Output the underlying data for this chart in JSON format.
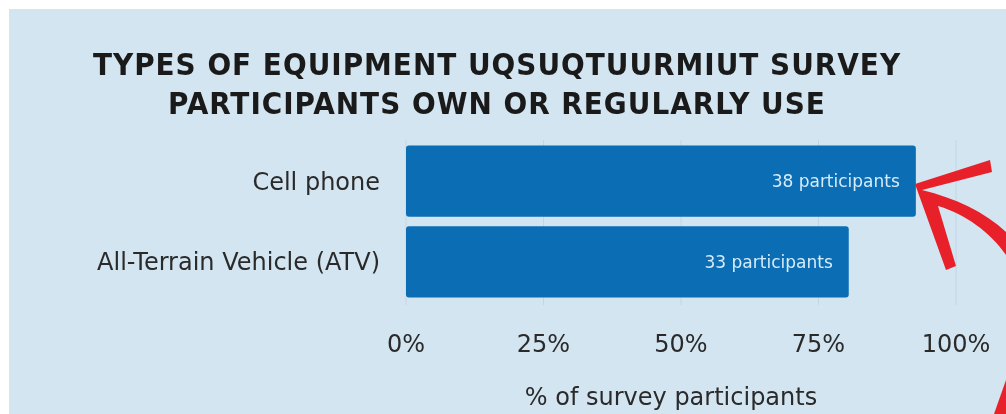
{
  "chart_data": {
    "type": "bar",
    "orientation": "horizontal",
    "title": "TYPES OF EQUIPMENT UQSUQTUURMIUT SURVEY PARTICIPANTS OWN OR REGULARLY USE",
    "xlabel": "% of survey participants",
    "categories": [
      "Cell phone",
      "All-Terrain Vehicle (ATV)"
    ],
    "values": [
      92.7,
      80.5
    ],
    "color": "#0b6db4",
    "annotations": [
      {
        "text": "38 participants",
        "y": "Cell phone"
      },
      {
        "text": "33 participants",
        "y": "All-Terrain Vehicle (ATV)"
      }
    ],
    "xlim": [
      0,
      100
    ],
    "xticks": [
      {
        "value": 0,
        "label": "0%"
      },
      {
        "value": 25,
        "label": "25%"
      },
      {
        "value": 50,
        "label": "50%"
      },
      {
        "value": 75,
        "label": "75%"
      },
      {
        "value": 100,
        "label": "100%"
      }
    ],
    "grid": "x"
  }
}
